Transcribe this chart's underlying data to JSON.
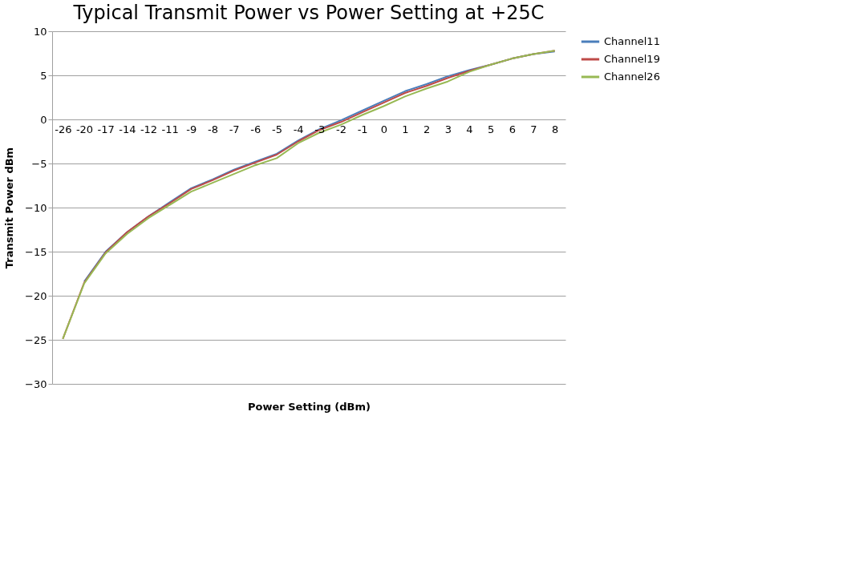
{
  "chart_data": {
    "type": "line",
    "title": "Typical Transmit Power vs Power Setting at +25C",
    "xlabel": "Power Setting (dBm)",
    "ylabel": "Transmit Power dBm",
    "categories": [
      "-26",
      "-20",
      "-17",
      "-14",
      "-12",
      "-11",
      "-9",
      "-8",
      "-7",
      "-6",
      "-5",
      "-4",
      "-3",
      "-2",
      "-1",
      "0",
      "1",
      "2",
      "3",
      "4",
      "5",
      "6",
      "7",
      "8"
    ],
    "series": [
      {
        "name": "Channel11",
        "color": "#4a7ebb",
        "values": [
          null,
          -18.4,
          -15.0,
          -12.8,
          -11.0,
          -9.4,
          -7.8,
          -6.8,
          -5.7,
          -4.8,
          -3.9,
          -2.4,
          -1.1,
          -0.1,
          1.0,
          2.1,
          3.2,
          4.0,
          4.9,
          5.6,
          6.2,
          6.9,
          7.4,
          7.7
        ]
      },
      {
        "name": "Channel19",
        "color": "#be4b48",
        "values": [
          -24.9,
          -18.5,
          -15.1,
          -12.8,
          -11.0,
          -9.5,
          -7.9,
          -6.9,
          -5.8,
          -4.9,
          -4.0,
          -2.5,
          -1.2,
          -0.3,
          0.8,
          1.9,
          3.0,
          3.8,
          4.7,
          5.5,
          6.2,
          6.9,
          7.4,
          7.8
        ]
      },
      {
        "name": "Channel26",
        "color": "#98b954",
        "values": [
          -24.9,
          -18.6,
          -15.2,
          -13.0,
          -11.2,
          -9.7,
          -8.2,
          -7.2,
          -6.2,
          -5.2,
          -4.4,
          -2.7,
          -1.5,
          -0.6,
          0.5,
          1.5,
          2.6,
          3.5,
          4.3,
          5.4,
          6.2,
          6.9,
          7.4,
          7.8
        ]
      }
    ],
    "ylim": [
      -30,
      10
    ],
    "yticks": [
      -30,
      -25,
      -20,
      -15,
      -10,
      -5,
      0,
      5,
      10
    ],
    "grid": "y",
    "legend": "right",
    "line_style": "solid",
    "marker": "none"
  }
}
